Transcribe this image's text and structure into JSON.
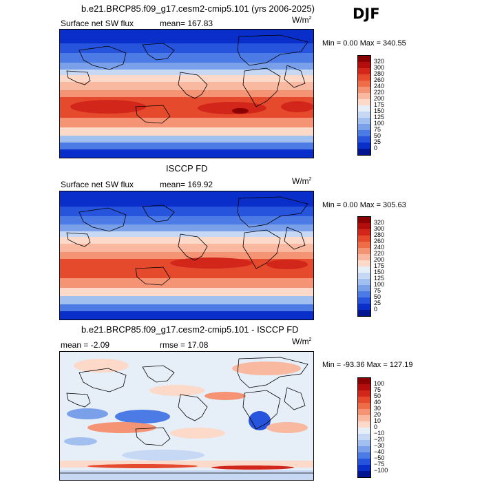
{
  "season": "DJF",
  "panels": [
    {
      "title": "b.e21.BRCP85.f09_g17.cesm2-cmip5.101 (yrs 2006-2025)",
      "left_label": "Surface net SW flux",
      "mean_label": "mean= 167.83",
      "units": "W/m",
      "units_exp": "2",
      "minmax": "Min =    0.00 Max = 340.55",
      "colorbar_labels": [
        "320",
        "300",
        "280",
        "260",
        "240",
        "220",
        "200",
        "175",
        "150",
        "125",
        "100",
        "75",
        "50",
        "25",
        "0"
      ],
      "colorbar_colors": [
        "#8b0000",
        "#b40d0d",
        "#d2261a",
        "#e54a2d",
        "#ef6c49",
        "#f59375",
        "#f9b8a0",
        "#fcd9c8",
        "#e6eef8",
        "#c6d8f3",
        "#a2c0ef",
        "#7aa0ea",
        "#4d7be6",
        "#2754dd",
        "#0a2ec9",
        "#00158f"
      ]
    },
    {
      "title": "ISCCP FD",
      "left_label": "Surface net SW flux",
      "mean_label": "mean= 169.92",
      "units": "W/m",
      "units_exp": "2",
      "minmax": "Min =    0.00 Max = 305.63",
      "colorbar_labels": [
        "320",
        "300",
        "280",
        "260",
        "240",
        "220",
        "200",
        "175",
        "150",
        "125",
        "100",
        "75",
        "50",
        "25",
        "0"
      ],
      "colorbar_colors": [
        "#8b0000",
        "#b40d0d",
        "#d2261a",
        "#e54a2d",
        "#ef6c49",
        "#f59375",
        "#f9b8a0",
        "#fcd9c8",
        "#e6eef8",
        "#c6d8f3",
        "#a2c0ef",
        "#7aa0ea",
        "#4d7be6",
        "#2754dd",
        "#0a2ec9",
        "#00158f"
      ]
    },
    {
      "title": "b.e21.BRCP85.f09_g17.cesm2-cmip5.101 - ISCCP FD",
      "left_label": "mean =   -2.09",
      "mean_label": "rmse =   17.08",
      "units": "W/m",
      "units_exp": "2",
      "minmax": "Min = -93.36 Max = 127.19",
      "colorbar_labels": [
        "100",
        "75",
        "50",
        "40",
        "30",
        "20",
        "10",
        "0",
        "−10",
        "−20",
        "−30",
        "−40",
        "−50",
        "−75",
        "−100"
      ],
      "colorbar_colors": [
        "#8b0000",
        "#b40d0d",
        "#d2261a",
        "#e54a2d",
        "#ef6c49",
        "#f59375",
        "#f9b8a0",
        "#fcd9c8",
        "#e6eef8",
        "#c6d8f3",
        "#a2c0ef",
        "#7aa0ea",
        "#4d7be6",
        "#2754dd",
        "#0a2ec9",
        "#00158f"
      ]
    }
  ]
}
